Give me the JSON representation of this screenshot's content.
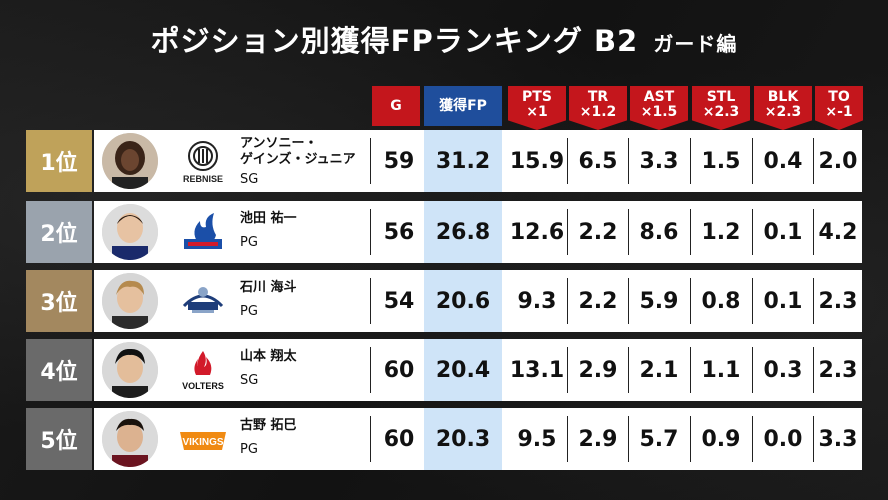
{
  "title": {
    "main": "ポジション別獲得FPランキング B2",
    "sub": "ガード編"
  },
  "headers": {
    "g": "G",
    "fp": "獲得FP",
    "pts": [
      "PTS",
      "×1"
    ],
    "tr": [
      "TR",
      "×1.2"
    ],
    "ast": [
      "AST",
      "×1.5"
    ],
    "stl": [
      "STL",
      "×2.3"
    ],
    "blk": [
      "BLK",
      "×2.3"
    ],
    "to": [
      "TO",
      "×-1"
    ]
  },
  "colors": {
    "rank_gold": "#bfa25a",
    "rank_silver": "#9aa3ad",
    "rank_bronze": "#a3885f",
    "rank_gray": "#6a6a6a",
    "header_red": "#c4161c",
    "header_blue": "#1f4e9c",
    "fp_highlight": "#cfe4f8"
  },
  "rows": [
    {
      "rank": "1位",
      "team_logo": "REBNISE",
      "name": "アンソニー・\nゲインズ・ジュニア",
      "pos": "SG",
      "g": "59",
      "fp": "31.2",
      "pts": "15.9",
      "tr": "6.5",
      "ast": "3.3",
      "stl": "1.5",
      "blk": "0.4",
      "to": "2.0"
    },
    {
      "rank": "2位",
      "team_logo": "",
      "name": "池田 祐一",
      "pos": "PG",
      "g": "56",
      "fp": "26.8",
      "pts": "12.6",
      "tr": "2.2",
      "ast": "8.6",
      "stl": "1.2",
      "blk": "0.1",
      "to": "4.2"
    },
    {
      "rank": "3位",
      "team_logo": "",
      "name": "石川 海斗",
      "pos": "PG",
      "g": "54",
      "fp": "20.6",
      "pts": "9.3",
      "tr": "2.2",
      "ast": "5.9",
      "stl": "0.8",
      "blk": "0.1",
      "to": "2.3"
    },
    {
      "rank": "4位",
      "team_logo": "VOLTERS",
      "name": "山本 翔太",
      "pos": "SG",
      "g": "60",
      "fp": "20.4",
      "pts": "13.1",
      "tr": "2.9",
      "ast": "2.1",
      "stl": "1.1",
      "blk": "0.3",
      "to": "2.3"
    },
    {
      "rank": "5位",
      "team_logo": "VIKINGS",
      "name": "古野 拓巳",
      "pos": "PG",
      "g": "60",
      "fp": "20.3",
      "pts": "9.5",
      "tr": "2.9",
      "ast": "5.7",
      "stl": "0.9",
      "blk": "0.0",
      "to": "3.3"
    }
  ]
}
